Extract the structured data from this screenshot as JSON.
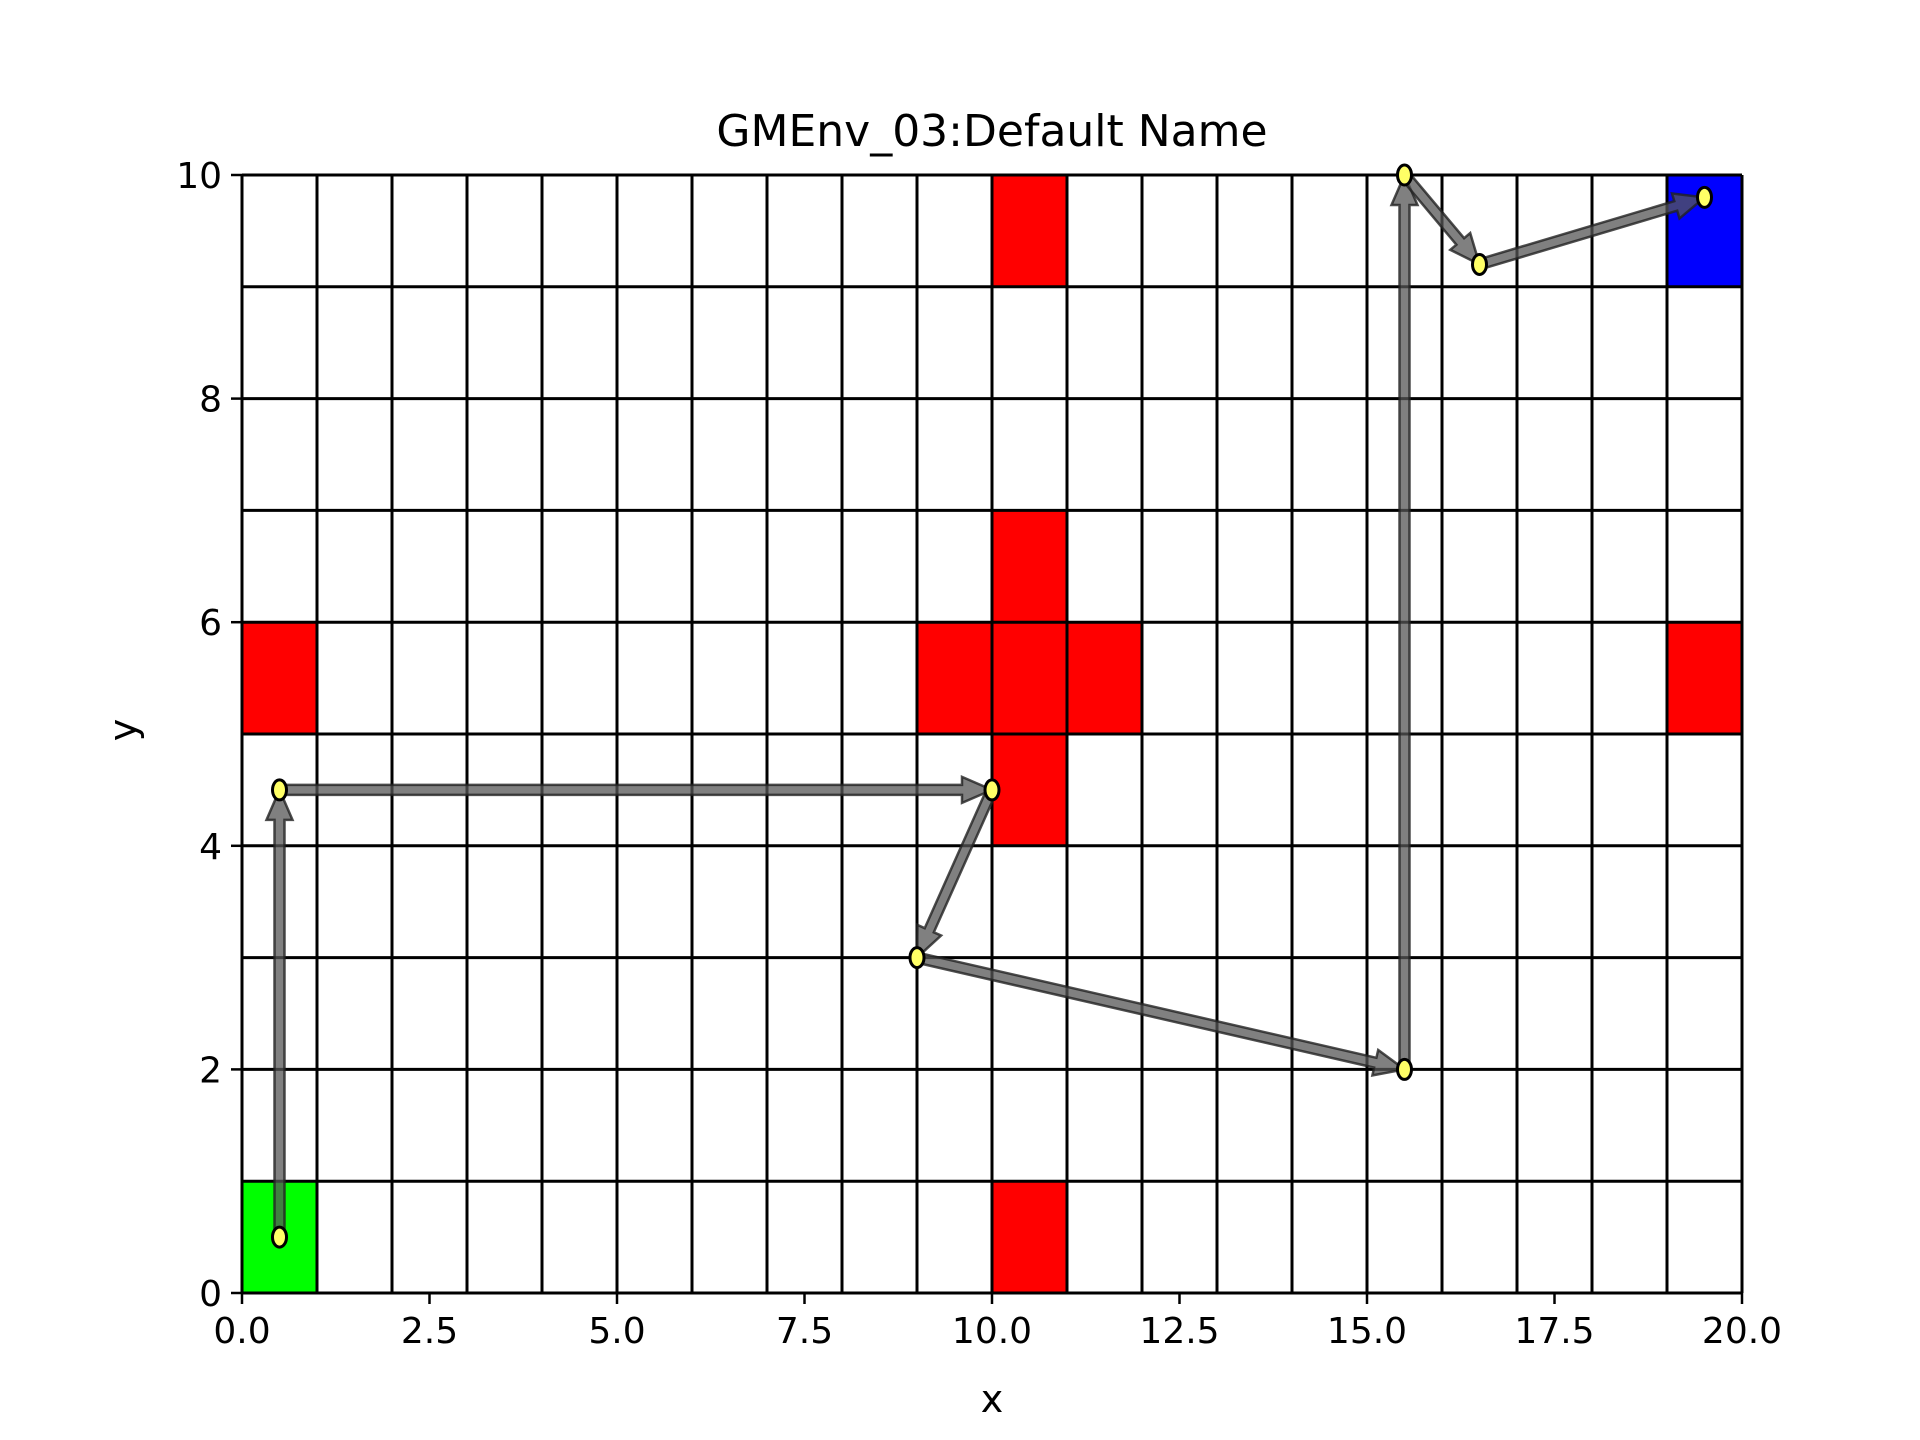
{
  "chart_data": {
    "type": "scatter",
    "title": "GMEnv_03:Default Name",
    "xlabel": "x",
    "ylabel": "y",
    "xlim": [
      0,
      20
    ],
    "ylim": [
      0,
      10
    ],
    "x_ticks": [
      "0.0",
      "2.5",
      "5.0",
      "7.5",
      "10.0",
      "12.5",
      "15.0",
      "17.5",
      "20.0"
    ],
    "y_ticks": [
      "0",
      "2",
      "4",
      "6",
      "8",
      "10"
    ],
    "x_tick_values": [
      0,
      2.5,
      5,
      7.5,
      10,
      12.5,
      15,
      17.5,
      20
    ],
    "y_tick_values": [
      0,
      2,
      4,
      6,
      8,
      10
    ],
    "grid": {
      "cell_width": 1,
      "cell_height": 1,
      "columns": 20,
      "rows": 10,
      "line_color": "#000000"
    },
    "cells": [
      {
        "x": 0,
        "y": 0,
        "color": "#00ff00",
        "kind": "start"
      },
      {
        "x": 19,
        "y": 9,
        "color": "#0000ff",
        "kind": "goal"
      },
      {
        "x": 10,
        "y": 9,
        "color": "#ff0000",
        "kind": "obstacle"
      },
      {
        "x": 10,
        "y": 6,
        "color": "#ff0000",
        "kind": "obstacle"
      },
      {
        "x": 9,
        "y": 5,
        "color": "#ff0000",
        "kind": "obstacle"
      },
      {
        "x": 10,
        "y": 5,
        "color": "#ff0000",
        "kind": "obstacle"
      },
      {
        "x": 11,
        "y": 5,
        "color": "#ff0000",
        "kind": "obstacle"
      },
      {
        "x": 10,
        "y": 4,
        "color": "#ff0000",
        "kind": "obstacle"
      },
      {
        "x": 0,
        "y": 5,
        "color": "#ff0000",
        "kind": "obstacle"
      },
      {
        "x": 19,
        "y": 5,
        "color": "#ff0000",
        "kind": "obstacle"
      },
      {
        "x": 10,
        "y": 0,
        "color": "#ff0000",
        "kind": "obstacle"
      }
    ],
    "path": [
      {
        "x": 0.5,
        "y": 0.5
      },
      {
        "x": 0.5,
        "y": 4.5
      },
      {
        "x": 10.0,
        "y": 4.5
      },
      {
        "x": 9.0,
        "y": 3.0
      },
      {
        "x": 15.5,
        "y": 2.0
      },
      {
        "x": 15.5,
        "y": 10.0
      },
      {
        "x": 16.5,
        "y": 9.2
      },
      {
        "x": 19.5,
        "y": 9.8
      }
    ],
    "arrow_color": "#555555",
    "point_color": "#ffff66"
  }
}
